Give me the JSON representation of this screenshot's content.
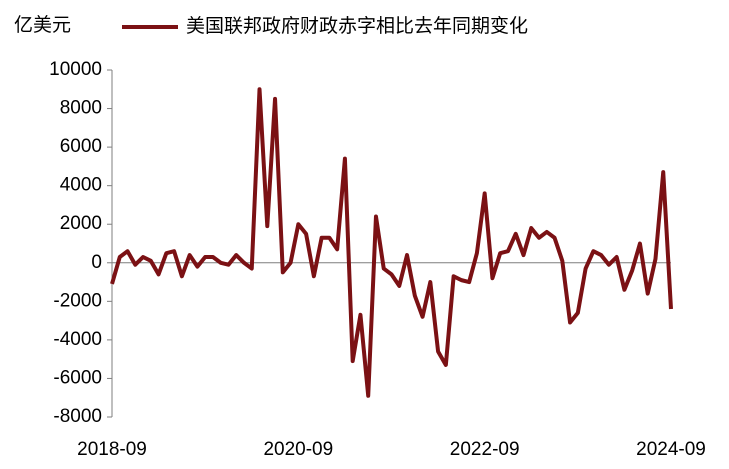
{
  "chart_data": {
    "type": "line",
    "y_label": "亿美元",
    "categories": [
      "2018-09",
      null,
      null,
      null,
      null,
      null,
      null,
      null,
      null,
      null,
      null,
      null,
      null,
      null,
      null,
      null,
      null,
      null,
      null,
      null,
      null,
      null,
      null,
      null,
      "2020-09",
      null,
      null,
      null,
      null,
      null,
      null,
      null,
      null,
      null,
      null,
      null,
      null,
      null,
      null,
      null,
      null,
      null,
      null,
      null,
      null,
      null,
      null,
      null,
      "2022-09",
      null,
      null,
      null,
      null,
      null,
      null,
      null,
      null,
      null,
      null,
      null,
      null,
      null,
      null,
      null,
      null,
      null,
      null,
      null,
      null,
      null,
      null,
      null,
      "2024-09"
    ],
    "series": [
      {
        "name": "美国联邦政府财政赤字相比去年同期变化",
        "color": "#7b1114",
        "values": [
          -1100,
          300,
          600,
          -100,
          300,
          100,
          -600,
          500,
          600,
          -700,
          400,
          -200,
          300,
          300,
          0,
          -100,
          400,
          0,
          -300,
          9000,
          1900,
          8500,
          -500,
          0,
          2000,
          1500,
          -700,
          1300,
          1300,
          700,
          5400,
          -5100,
          -2700,
          -6900,
          2400,
          -300,
          -600,
          -1200,
          400,
          -1700,
          -2800,
          -1000,
          -4600,
          -5300,
          -700,
          -900,
          -1000,
          500,
          3600,
          -800,
          500,
          600,
          1500,
          400,
          1800,
          1300,
          1600,
          1300,
          100,
          -3100,
          -2600,
          -300,
          600,
          400,
          -100,
          300,
          -1400,
          -400,
          1000,
          -1600,
          200,
          4700,
          -2400
        ]
      }
    ],
    "ylim": [
      -8000,
      10000
    ],
    "yticks": [
      -8000,
      -6000,
      -4000,
      -2000,
      0,
      2000,
      4000,
      6000,
      8000,
      10000
    ]
  }
}
